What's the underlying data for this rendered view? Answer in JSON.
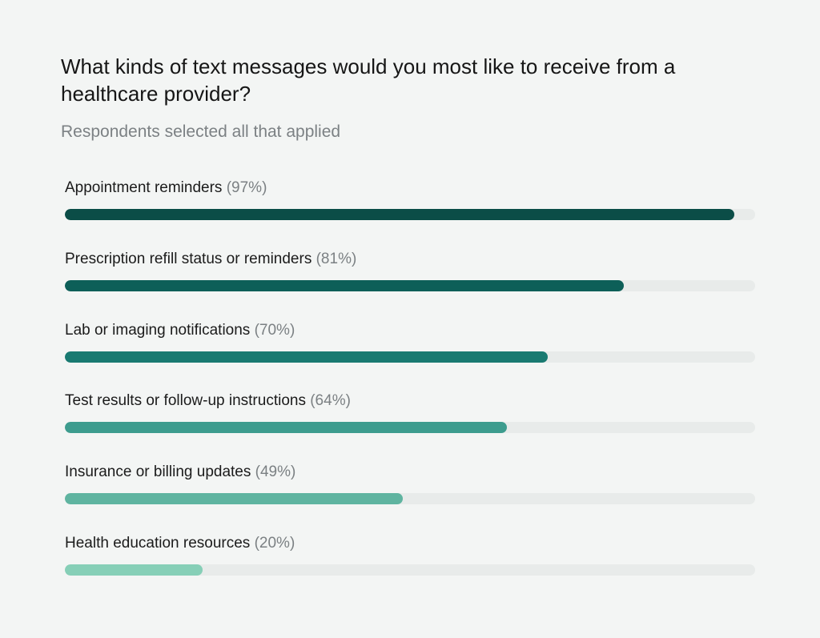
{
  "chart_data": {
    "type": "bar",
    "orientation": "horizontal",
    "title": "What kinds of text messages would you most like to receive from a healthcare provider?",
    "subtitle": "Respondents selected all that applied",
    "xlim": [
      0,
      100
    ],
    "grid": false,
    "categories": [
      "Appointment reminders",
      "Prescription refill status or reminders",
      "Lab or imaging notifications",
      "Test results or follow-up instructions",
      "Insurance or billing updates",
      "Health education resources"
    ],
    "values": [
      97,
      81,
      70,
      64,
      49,
      20
    ],
    "value_labels": [
      "(97%)",
      "(81%)",
      "(70%)",
      "(64%)",
      "(49%)",
      "(20%)"
    ],
    "colors": [
      "#0b4d47",
      "#0d5f58",
      "#197a71",
      "#3d9c8e",
      "#5fb4a0",
      "#86cfb7"
    ],
    "track_color": "#e8ebea"
  }
}
